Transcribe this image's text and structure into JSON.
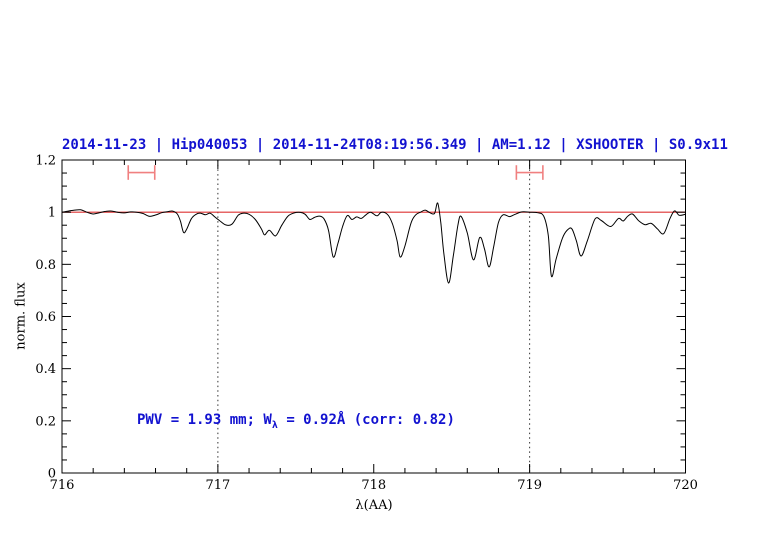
{
  "page": {
    "background": "#ffffff"
  },
  "chart_data": {
    "type": "line",
    "title": "2014-11-23 | Hip040053 | 2014-11-24T08:19:56.349 | AM=1.12 | XSHOOTER | S0.9x11",
    "title_color": "#1212d0",
    "xlabel": "λ(AA)",
    "ylabel": "norm. flux",
    "xlim": [
      716,
      720
    ],
    "ylim": [
      0,
      1.2
    ],
    "grid": "off",
    "legend": "none",
    "x_major_ticks": [
      716,
      717,
      718,
      719,
      720
    ],
    "x_major_labels": [
      "716",
      "717",
      "718",
      "719",
      "720"
    ],
    "x_minor_step": 0.2,
    "y_major_ticks": [
      0,
      0.2,
      0.4,
      0.6,
      0.8,
      1.0,
      1.2
    ],
    "y_major_labels": [
      "0",
      "0.2",
      "0.4",
      "0.6",
      "0.8",
      "1",
      "1.2"
    ],
    "y_minor_step": 0.05,
    "vlines": [
      {
        "x": 717,
        "style": "dotted",
        "color": "#333333"
      },
      {
        "x": 719,
        "style": "dotted",
        "color": "#333333"
      }
    ],
    "hlines": [
      {
        "y": 1.0,
        "color": "#dd3333",
        "name": "continuum-reference"
      }
    ],
    "range_markers": [
      {
        "x_center": 716.51,
        "x_half_width": 0.085,
        "y": 1.152,
        "cap_half_height": 0.028,
        "color": "#f08080"
      },
      {
        "x_center": 719.0,
        "x_half_width": 0.085,
        "y": 1.152,
        "cap_half_height": 0.028,
        "color": "#f08080"
      }
    ],
    "annotation": {
      "pre": "PWV = 1.93 mm; W",
      "sub": "λ",
      "post": " = 0.92Å (corr: 0.82)",
      "color": "#1212d0",
      "x": 716.48,
      "y": 0.2
    },
    "series": [
      {
        "name": "normalized-spectrum",
        "color": "#000000",
        "x": [
          716.0,
          716.04,
          716.08,
          716.12,
          716.16,
          716.2,
          716.24,
          716.28,
          716.32,
          716.36,
          716.4,
          716.44,
          716.48,
          716.52,
          716.56,
          716.6,
          716.64,
          716.68,
          716.71,
          716.74,
          716.76,
          716.78,
          716.8,
          716.83,
          716.86,
          716.89,
          716.92,
          716.95,
          716.98,
          717.01,
          717.05,
          717.09,
          717.13,
          717.16,
          717.2,
          717.24,
          717.28,
          717.3,
          717.33,
          717.37,
          717.41,
          717.45,
          717.49,
          717.53,
          717.56,
          717.59,
          717.62,
          717.65,
          717.68,
          717.71,
          717.74,
          717.77,
          717.8,
          717.83,
          717.86,
          717.89,
          717.92,
          717.95,
          717.98,
          718.02,
          718.05,
          718.09,
          718.12,
          718.15,
          718.17,
          718.2,
          718.24,
          718.27,
          718.3,
          718.33,
          718.36,
          718.39,
          718.41,
          718.43,
          718.45,
          718.48,
          718.51,
          718.54,
          718.56,
          718.6,
          718.64,
          718.68,
          718.71,
          718.74,
          718.77,
          718.8,
          718.83,
          718.87,
          718.9,
          718.95,
          719.0,
          719.05,
          719.09,
          719.12,
          719.14,
          719.17,
          719.21,
          719.24,
          719.27,
          719.3,
          719.33,
          719.37,
          719.42,
          719.46,
          719.52,
          719.57,
          719.6,
          719.63,
          719.66,
          719.7,
          719.74,
          719.78,
          719.82,
          719.86,
          719.9,
          719.93,
          719.96,
          720.0
        ],
        "y": [
          1.0,
          1.004,
          1.008,
          1.009,
          1.0,
          0.993,
          0.998,
          1.003,
          1.004,
          0.999,
          0.997,
          1.001,
          1.0,
          0.995,
          0.984,
          0.989,
          0.998,
          1.002,
          1.004,
          0.993,
          0.965,
          0.922,
          0.935,
          0.975,
          0.992,
          0.996,
          0.99,
          0.996,
          0.982,
          0.968,
          0.951,
          0.954,
          0.988,
          0.996,
          0.992,
          0.972,
          0.935,
          0.913,
          0.931,
          0.909,
          0.95,
          0.985,
          0.997,
          0.999,
          0.992,
          0.972,
          0.98,
          0.985,
          0.975,
          0.93,
          0.828,
          0.88,
          0.945,
          0.987,
          0.972,
          0.982,
          0.976,
          0.99,
          1.0,
          0.986,
          1.0,
          0.99,
          0.955,
          0.89,
          0.828,
          0.87,
          0.96,
          0.99,
          1.0,
          1.008,
          0.998,
          0.995,
          1.035,
          0.96,
          0.84,
          0.728,
          0.83,
          0.95,
          0.984,
          0.92,
          0.817,
          0.903,
          0.86,
          0.79,
          0.87,
          0.96,
          0.99,
          0.983,
          0.99,
          1.001,
          1.0,
          0.998,
          0.985,
          0.91,
          0.755,
          0.82,
          0.9,
          0.93,
          0.937,
          0.89,
          0.832,
          0.89,
          0.974,
          0.968,
          0.945,
          0.976,
          0.966,
          0.985,
          0.993,
          0.967,
          0.952,
          0.957,
          0.936,
          0.918,
          0.975,
          1.005,
          0.988,
          0.992
        ]
      }
    ]
  }
}
